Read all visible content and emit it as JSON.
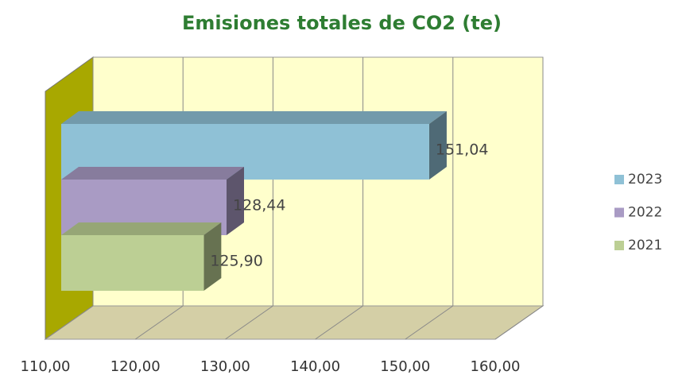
{
  "chart_data": {
    "type": "bar3d",
    "title": "Emisiones totales de CO2 (te)",
    "categories": [
      "2023",
      "2022",
      "2021"
    ],
    "values": [
      151.04,
      128.44,
      125.9
    ],
    "value_labels": [
      "151,04",
      "128,44",
      "125,90"
    ],
    "colors": [
      "#8fc1d6",
      "#a99bc4",
      "#bccf94"
    ],
    "xlim": [
      110,
      160
    ],
    "xticks": [
      {
        "value": 110,
        "label": "110,00"
      },
      {
        "value": 120,
        "label": "120,00"
      },
      {
        "value": 130,
        "label": "130,00"
      },
      {
        "value": 140,
        "label": "140,00"
      },
      {
        "value": 150,
        "label": "150,00"
      },
      {
        "value": 160,
        "label": "160,00"
      }
    ],
    "grid": true,
    "legend": "right"
  }
}
